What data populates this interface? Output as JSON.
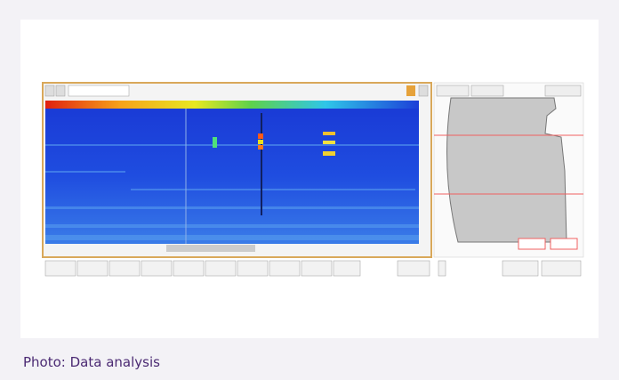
{
  "caption": "Photo: Data analysis"
}
